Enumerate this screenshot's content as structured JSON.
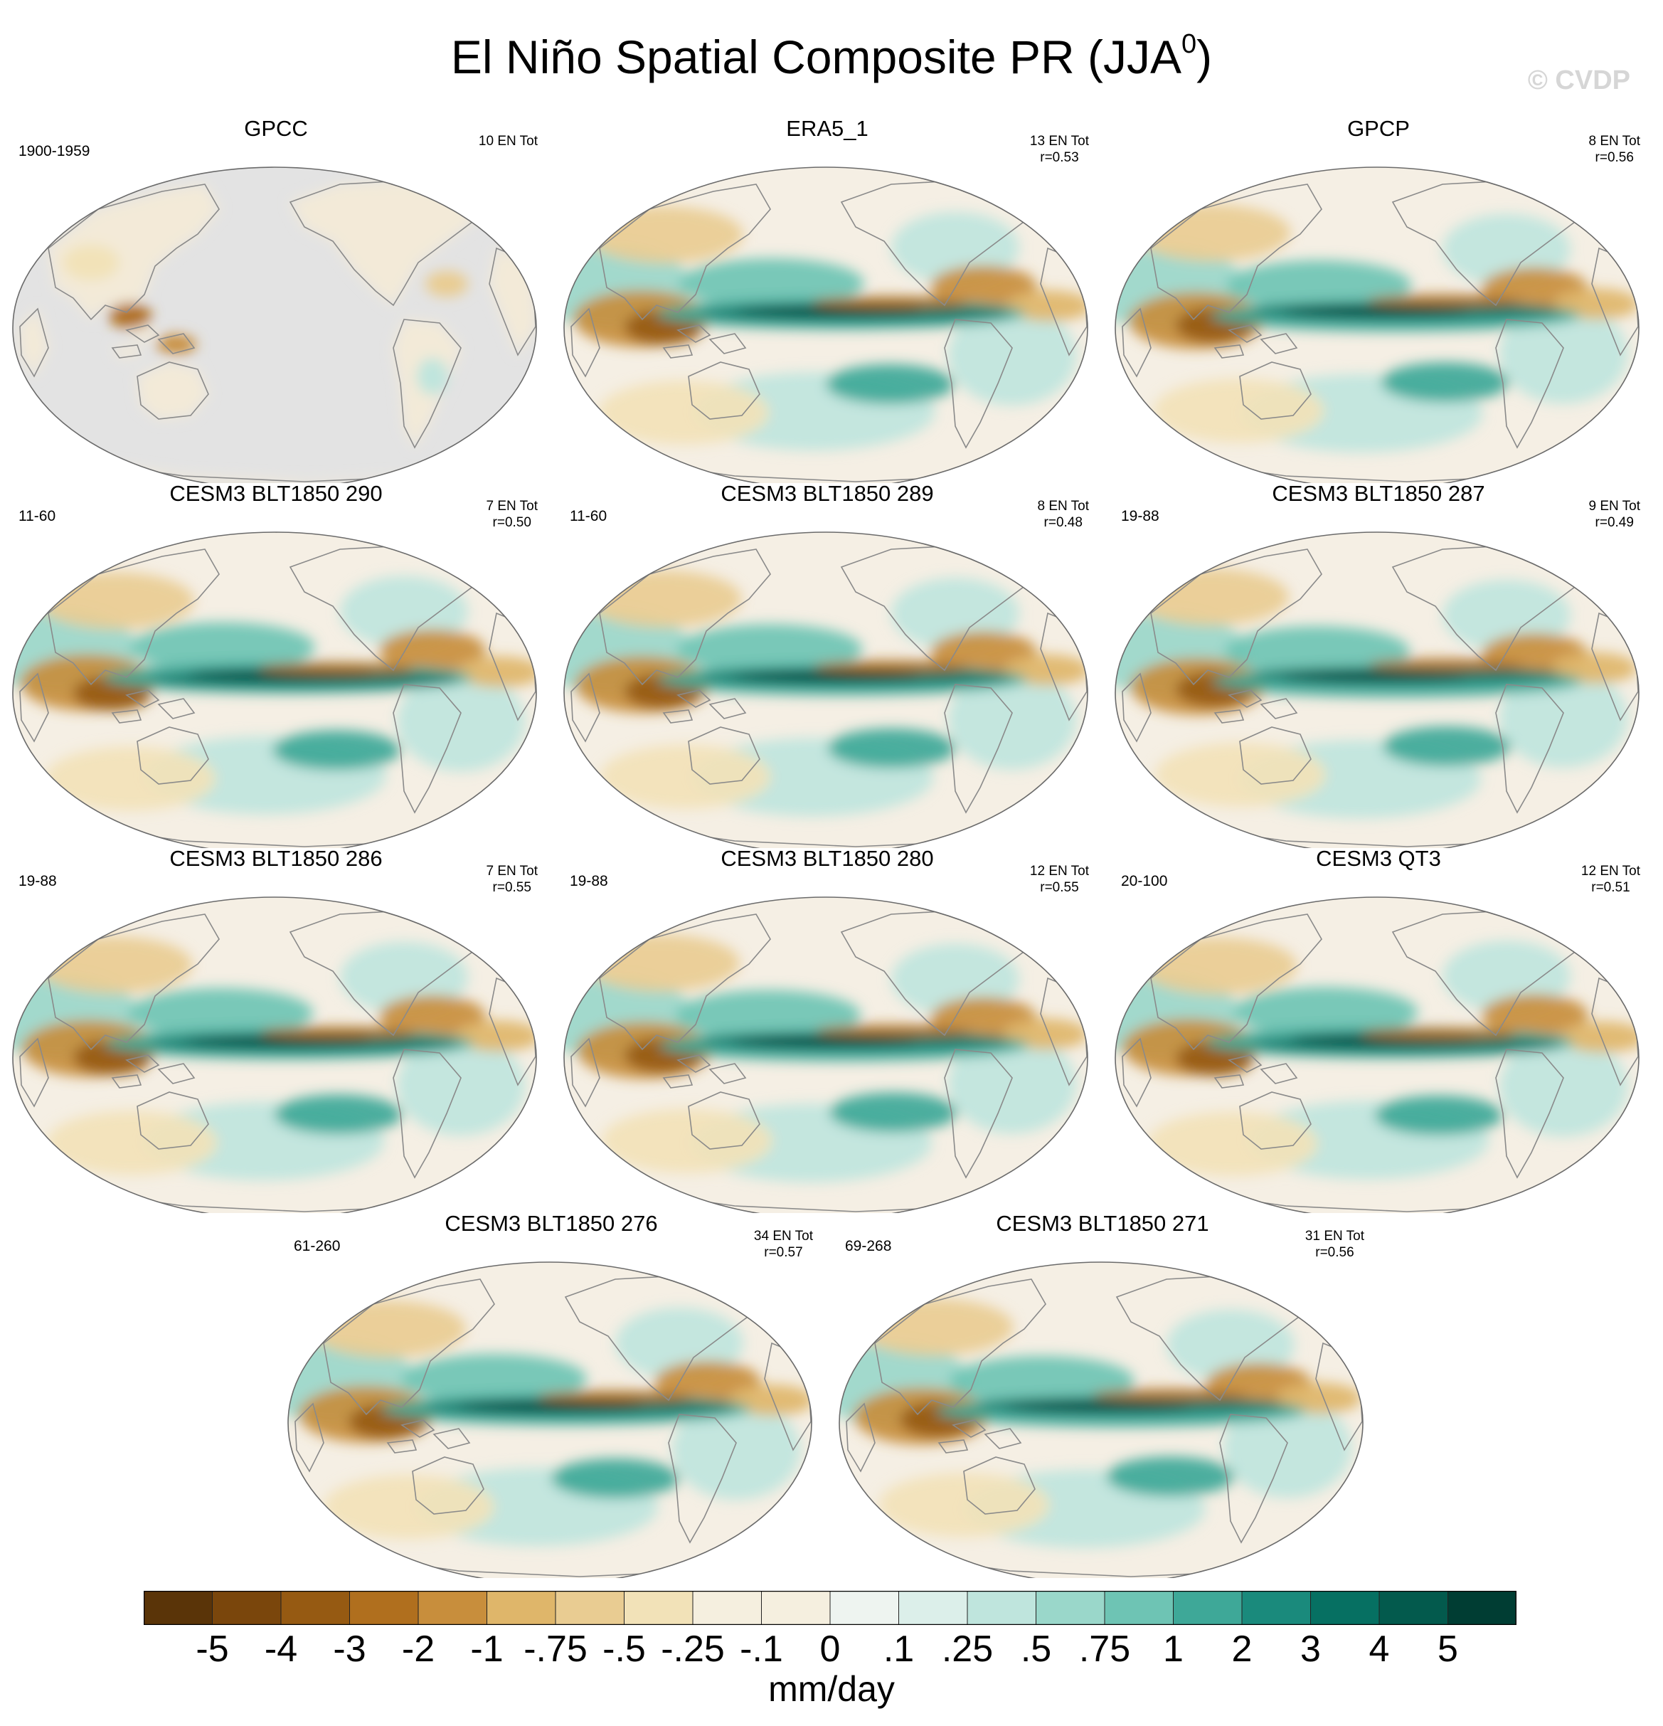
{
  "title": {
    "main": "El Niño Spatial Composite PR (JJA",
    "sup": "0",
    "close": ")"
  },
  "copyright": "© CVDP",
  "panels": [
    {
      "title": "GPCC",
      "left": "1900-1959",
      "right1": "10 EN Tot",
      "right2": "",
      "masked": true
    },
    {
      "title": "ERA5_1",
      "left": "",
      "right1": "13 EN Tot",
      "right2": "r=0.53",
      "masked": false
    },
    {
      "title": "GPCP",
      "left": "",
      "right1": "8 EN Tot",
      "right2": "r=0.56",
      "masked": false
    },
    {
      "title": "CESM3 BLT1850 290",
      "left": "11-60",
      "right1": "7 EN Tot",
      "right2": "r=0.50",
      "masked": false
    },
    {
      "title": "CESM3 BLT1850 289",
      "left": "11-60",
      "right1": "8 EN Tot",
      "right2": "r=0.48",
      "masked": false
    },
    {
      "title": "CESM3 BLT1850 287",
      "left": "19-88",
      "right1": "9 EN Tot",
      "right2": "r=0.49",
      "masked": false
    },
    {
      "title": "CESM3 BLT1850 286",
      "left": "19-88",
      "right1": "7 EN Tot",
      "right2": "r=0.55",
      "masked": false
    },
    {
      "title": "CESM3 BLT1850 280",
      "left": "19-88",
      "right1": "12 EN Tot",
      "right2": "r=0.55",
      "masked": false
    },
    {
      "title": "CESM3 QT3",
      "left": "20-100",
      "right1": "12 EN Tot",
      "right2": "r=0.51",
      "masked": false
    },
    {
      "title": "CESM3 BLT1850 276",
      "left": "61-260",
      "right1": "34 EN Tot",
      "right2": "r=0.57",
      "masked": false
    },
    {
      "title": "CESM3 BLT1850 271",
      "left": "69-268",
      "right1": "31 EN Tot",
      "right2": "r=0.56",
      "masked": false
    }
  ],
  "colorbar": {
    "labels": [
      "-5",
      "-4",
      "-3",
      "-2",
      "-1",
      "-.75",
      "-.5",
      "-.25",
      "-.1",
      "0",
      ".1",
      ".25",
      ".5",
      ".75",
      "1",
      "2",
      "3",
      "4",
      "5"
    ],
    "colors": [
      "#5a3408",
      "#7a460c",
      "#965a12",
      "#b06f1e",
      "#c88e3c",
      "#dfb66a",
      "#e9cc92",
      "#f2e2b8",
      "#f5efdf",
      "#f2f6f2",
      "#dcefea",
      "#bfe5dd",
      "#9ad7ca",
      "#6ec4b4",
      "#3ea898",
      "#1a8a7c",
      "#067062",
      "#035a4d",
      "#003d33"
    ],
    "units": "mm/day"
  },
  "style": {
    "land_mask": "#e3e3e3",
    "coast": "#8a8a8a",
    "ocean_base": "#f5efe4"
  }
}
